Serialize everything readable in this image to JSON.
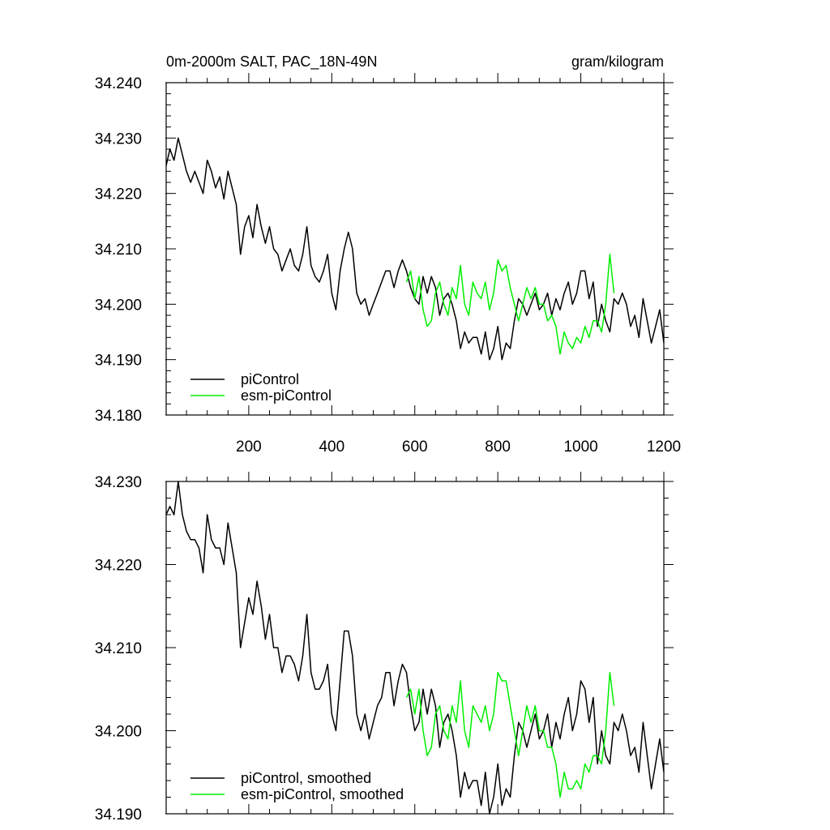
{
  "chart_data": [
    {
      "type": "line",
      "title": "0m-2000m SALT, PAC_18N-49N",
      "units": "gram/kilogram",
      "xlim": [
        1,
        1200
      ],
      "ylim": [
        34.18,
        34.24
      ],
      "x_ticks": [
        200,
        400,
        600,
        800,
        1000,
        1200
      ],
      "x_tick_labels": [
        "200",
        "400",
        "600",
        "800",
        "1000",
        "1200"
      ],
      "y_ticks": [
        34.18,
        34.19,
        34.2,
        34.21,
        34.22,
        34.23,
        34.24
      ],
      "y_tick_labels": [
        "34.180",
        "34.190",
        "34.200",
        "34.210",
        "34.220",
        "34.230",
        "34.240"
      ],
      "legend_position": "bottom-left",
      "grid": false,
      "series": [
        {
          "name": "piControl",
          "color": "#000000",
          "x": [
            1,
            10,
            20,
            30,
            40,
            50,
            60,
            70,
            80,
            90,
            100,
            110,
            120,
            130,
            140,
            150,
            160,
            170,
            180,
            190,
            200,
            210,
            220,
            230,
            240,
            250,
            260,
            270,
            280,
            290,
            300,
            310,
            320,
            330,
            340,
            350,
            360,
            370,
            380,
            390,
            400,
            410,
            420,
            430,
            440,
            450,
            460,
            470,
            480,
            490,
            500,
            510,
            520,
            530,
            540,
            550,
            560,
            570,
            580,
            590,
            600,
            610,
            620,
            630,
            640,
            650,
            660,
            670,
            680,
            690,
            700,
            710,
            720,
            730,
            740,
            750,
            760,
            770,
            780,
            790,
            800,
            810,
            820,
            830,
            840,
            850,
            860,
            870,
            880,
            890,
            900,
            910,
            920,
            930,
            940,
            950,
            960,
            970,
            980,
            990,
            1000,
            1010,
            1020,
            1030,
            1040,
            1050,
            1060,
            1070,
            1080,
            1090,
            1100,
            1110,
            1120,
            1130,
            1140,
            1150,
            1160,
            1170,
            1180,
            1190,
            1200
          ],
          "y": [
            34.225,
            34.228,
            34.226,
            34.23,
            34.227,
            34.224,
            34.222,
            34.224,
            34.222,
            34.22,
            34.226,
            34.224,
            34.221,
            34.223,
            34.219,
            34.224,
            34.221,
            34.218,
            34.209,
            34.214,
            34.216,
            34.212,
            34.218,
            34.214,
            34.211,
            34.214,
            34.21,
            34.209,
            34.206,
            34.208,
            34.21,
            34.207,
            34.206,
            34.209,
            34.214,
            34.207,
            34.205,
            34.204,
            34.206,
            34.209,
            34.202,
            34.199,
            34.206,
            34.21,
            34.213,
            34.21,
            34.202,
            34.2,
            34.201,
            34.198,
            34.2,
            34.202,
            34.204,
            34.206,
            34.206,
            34.203,
            34.206,
            34.208,
            34.206,
            34.203,
            34.201,
            34.2,
            34.205,
            34.202,
            34.205,
            34.203,
            34.198,
            34.201,
            34.202,
            34.2,
            34.197,
            34.192,
            34.195,
            34.193,
            34.194,
            34.194,
            34.191,
            34.195,
            34.19,
            34.192,
            34.196,
            34.19,
            34.193,
            34.192,
            34.197,
            34.201,
            34.2,
            34.198,
            34.2,
            34.202,
            34.199,
            34.2,
            34.202,
            34.198,
            34.201,
            34.199,
            34.202,
            34.204,
            34.2,
            34.202,
            34.206,
            34.206,
            34.201,
            34.204,
            34.196,
            34.2,
            34.197,
            34.195,
            34.201,
            34.2,
            34.202,
            34.2,
            34.196,
            34.198,
            34.194,
            34.201,
            34.197,
            34.193,
            34.196,
            34.199,
            34.193
          ]
        },
        {
          "name": "esm-piControl",
          "color": "#00ee00",
          "x": [
            580,
            590,
            600,
            610,
            620,
            630,
            640,
            650,
            660,
            670,
            680,
            690,
            700,
            710,
            720,
            730,
            740,
            750,
            760,
            770,
            780,
            790,
            800,
            810,
            820,
            830,
            840,
            850,
            860,
            870,
            880,
            890,
            900,
            910,
            920,
            930,
            940,
            950,
            960,
            970,
            980,
            990,
            1000,
            1010,
            1020,
            1030,
            1040,
            1050,
            1060,
            1070,
            1080
          ],
          "y": [
            34.204,
            34.206,
            34.201,
            34.205,
            34.199,
            34.196,
            34.197,
            34.202,
            34.204,
            34.2,
            34.198,
            34.203,
            34.201,
            34.207,
            34.2,
            34.198,
            34.204,
            34.202,
            34.201,
            34.204,
            34.199,
            34.202,
            34.208,
            34.206,
            34.207,
            34.203,
            34.2,
            34.197,
            34.2,
            34.203,
            34.201,
            34.203,
            34.2,
            34.2,
            34.197,
            34.198,
            34.196,
            34.191,
            34.195,
            34.193,
            34.192,
            34.194,
            34.193,
            34.196,
            34.194,
            34.197,
            34.197,
            34.195,
            34.2,
            34.209,
            34.202
          ]
        }
      ]
    },
    {
      "type": "line",
      "xlim": [
        1,
        1200
      ],
      "ylim": [
        34.19,
        34.23
      ],
      "x_ticks": [
        200,
        400,
        600,
        800,
        1000,
        1200
      ],
      "y_ticks": [
        34.19,
        34.2,
        34.21,
        34.22,
        34.23
      ],
      "y_tick_labels": [
        "34.190",
        "34.200",
        "34.210",
        "34.220",
        "34.230"
      ],
      "legend_position": "bottom-left",
      "grid": false,
      "series": [
        {
          "name": "piControl, smoothed",
          "color": "#000000",
          "x": [
            1,
            10,
            20,
            30,
            40,
            50,
            60,
            70,
            80,
            90,
            100,
            110,
            120,
            130,
            140,
            150,
            160,
            170,
            180,
            190,
            200,
            210,
            220,
            230,
            240,
            250,
            260,
            270,
            280,
            290,
            300,
            310,
            320,
            330,
            340,
            350,
            360,
            370,
            380,
            390,
            400,
            410,
            420,
            430,
            440,
            450,
            460,
            470,
            480,
            490,
            500,
            510,
            520,
            530,
            540,
            550,
            560,
            570,
            580,
            590,
            600,
            610,
            620,
            630,
            640,
            650,
            660,
            670,
            680,
            690,
            700,
            710,
            720,
            730,
            740,
            750,
            760,
            770,
            780,
            790,
            800,
            810,
            820,
            830,
            840,
            850,
            860,
            870,
            880,
            890,
            900,
            910,
            920,
            930,
            940,
            950,
            960,
            970,
            980,
            990,
            1000,
            1010,
            1020,
            1030,
            1040,
            1050,
            1060,
            1070,
            1080,
            1090,
            1100,
            1110,
            1120,
            1130,
            1140,
            1150,
            1160,
            1170,
            1180,
            1190,
            1200
          ],
          "y": [
            34.226,
            34.227,
            34.226,
            34.23,
            34.226,
            34.224,
            34.223,
            34.223,
            34.222,
            34.219,
            34.226,
            34.223,
            34.222,
            34.222,
            34.22,
            34.225,
            34.222,
            34.219,
            34.21,
            34.213,
            34.216,
            34.214,
            34.218,
            34.215,
            34.211,
            34.214,
            34.21,
            34.21,
            34.207,
            34.209,
            34.209,
            34.208,
            34.206,
            34.209,
            34.214,
            34.207,
            34.205,
            34.205,
            34.206,
            34.208,
            34.202,
            34.2,
            34.206,
            34.212,
            34.212,
            34.209,
            34.202,
            34.2,
            34.202,
            34.199,
            34.201,
            34.203,
            34.204,
            34.207,
            34.207,
            34.203,
            34.206,
            34.208,
            34.207,
            34.203,
            34.2,
            34.201,
            34.205,
            34.202,
            34.205,
            34.203,
            34.198,
            34.201,
            34.202,
            34.2,
            34.197,
            34.192,
            34.195,
            34.193,
            34.194,
            34.194,
            34.191,
            34.195,
            34.19,
            34.192,
            34.196,
            34.191,
            34.193,
            34.192,
            34.197,
            34.201,
            34.2,
            34.198,
            34.2,
            34.202,
            34.199,
            34.2,
            34.202,
            34.198,
            34.201,
            34.199,
            34.202,
            34.204,
            34.2,
            34.202,
            34.206,
            34.205,
            34.201,
            34.204,
            34.196,
            34.2,
            34.197,
            34.196,
            34.201,
            34.2,
            34.202,
            34.2,
            34.197,
            34.198,
            34.195,
            34.201,
            34.197,
            34.193,
            34.196,
            34.199,
            34.195
          ]
        },
        {
          "name": "esm-piControl, smoothed",
          "color": "#00ee00",
          "x": [
            580,
            590,
            600,
            610,
            620,
            630,
            640,
            650,
            660,
            670,
            680,
            690,
            700,
            710,
            720,
            730,
            740,
            750,
            760,
            770,
            780,
            790,
            800,
            810,
            820,
            830,
            840,
            850,
            860,
            870,
            880,
            890,
            900,
            910,
            920,
            930,
            940,
            950,
            960,
            970,
            980,
            990,
            1000,
            1010,
            1020,
            1030,
            1040,
            1050,
            1060,
            1070,
            1080
          ],
          "y": [
            34.204,
            34.205,
            34.202,
            34.205,
            34.2,
            34.197,
            34.198,
            34.202,
            34.203,
            34.2,
            34.199,
            34.203,
            34.201,
            34.206,
            34.2,
            34.198,
            34.203,
            34.202,
            34.201,
            34.203,
            34.2,
            34.202,
            34.207,
            34.206,
            34.206,
            34.203,
            34.2,
            34.197,
            34.2,
            34.203,
            34.201,
            34.203,
            34.2,
            34.2,
            34.198,
            34.198,
            34.196,
            34.192,
            34.195,
            34.193,
            34.193,
            34.194,
            34.193,
            34.196,
            34.195,
            34.197,
            34.197,
            34.196,
            34.2,
            34.207,
            34.203
          ]
        }
      ]
    }
  ]
}
